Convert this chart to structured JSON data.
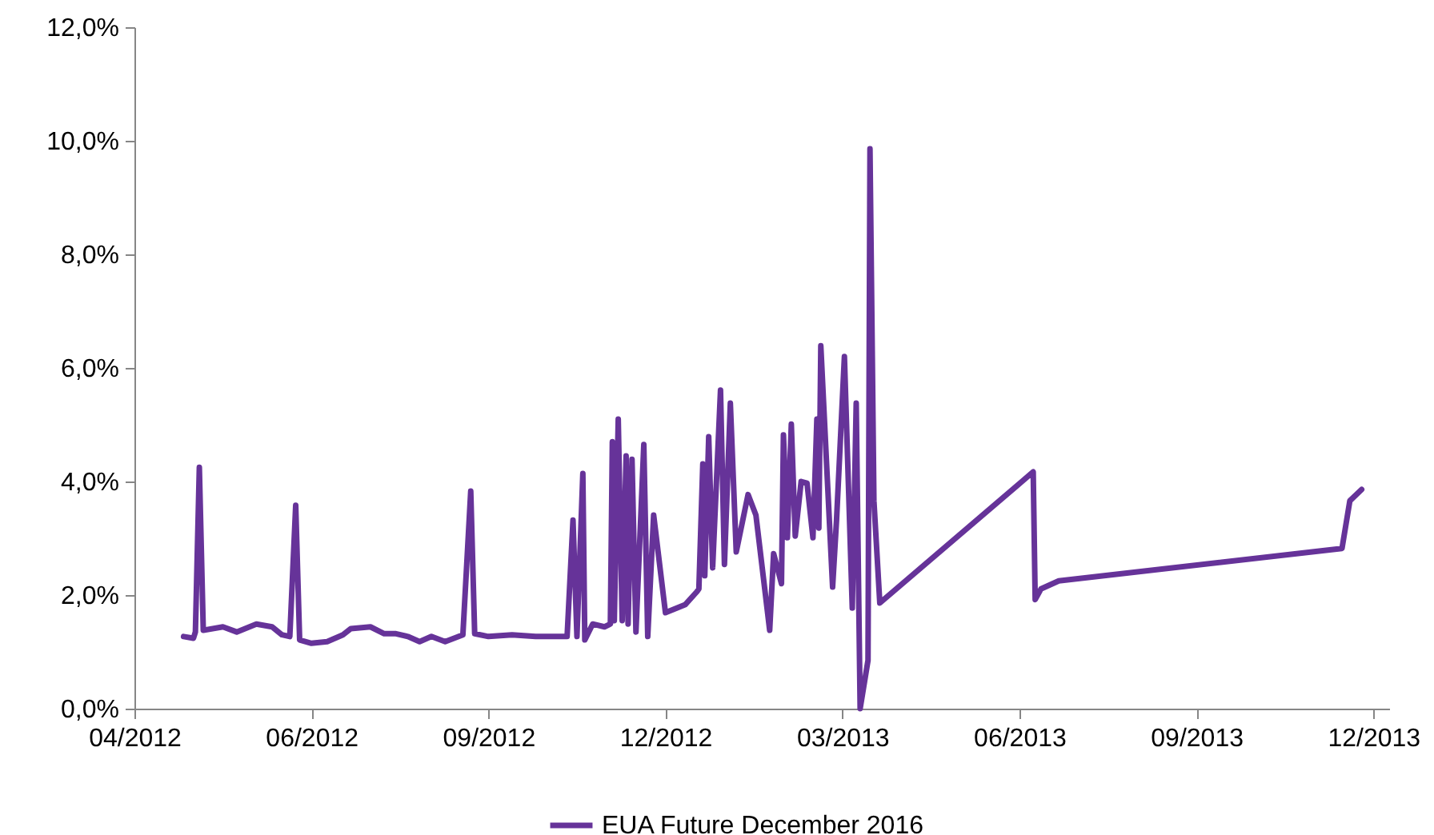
{
  "chart_data": {
    "type": "line",
    "legend": "bottom",
    "grid": false,
    "x": [
      "2012-04-26",
      "2012-05-01",
      "2012-05-02",
      "2012-05-04",
      "2012-05-06",
      "2012-05-16",
      "2012-05-23",
      "2012-06-02",
      "2012-06-10",
      "2012-06-15",
      "2012-06-19",
      "2012-06-22",
      "2012-06-24",
      "2012-06-30",
      "2012-07-08",
      "2012-07-16",
      "2012-07-20",
      "2012-07-30",
      "2012-08-06",
      "2012-08-12",
      "2012-08-18",
      "2012-08-24",
      "2012-08-30",
      "2012-09-06",
      "2012-09-15",
      "2012-09-19",
      "2012-09-21",
      "2012-09-28",
      "2012-10-10",
      "2012-10-22",
      "2012-10-30",
      "2012-11-07",
      "2012-11-10",
      "2012-11-12",
      "2012-11-15",
      "2012-11-16",
      "2012-11-20",
      "2012-11-26",
      "2012-11-29",
      "2012-11-30",
      "2012-12-01",
      "2012-12-03",
      "2012-12-05",
      "2012-12-07",
      "2012-12-08",
      "2012-12-10",
      "2012-12-12",
      "2012-12-16",
      "2012-12-18",
      "2012-12-21",
      "2012-12-27",
      "2013-01-06",
      "2013-01-12",
      "2013-01-13",
      "2013-01-15",
      "2013-01-16",
      "2013-01-18",
      "2013-01-20",
      "2013-01-24",
      "2013-01-26",
      "2013-01-29",
      "2013-02-01",
      "2013-02-07",
      "2013-02-11",
      "2013-02-18",
      "2013-02-20",
      "2013-02-24",
      "2013-02-25",
      "2013-02-27",
      "2013-03-01",
      "2013-03-03",
      "2013-03-06",
      "2013-03-09",
      "2013-03-12",
      "2013-03-14",
      "2013-03-15",
      "2013-03-16",
      "2013-03-22",
      "2013-03-24",
      "2013-03-28",
      "2013-04-01",
      "2013-04-03",
      "2013-04-05",
      "2013-04-09",
      "2013-04-10",
      "2013-04-12",
      "2013-04-15",
      "2013-07-02",
      "2013-07-03",
      "2013-07-06",
      "2013-07-15",
      "2013-12-06",
      "2013-12-10",
      "2013-12-16"
    ],
    "series": [
      {
        "name": "EUA Future December 2016",
        "color": "#663399",
        "values": [
          1.27,
          1.24,
          1.35,
          4.25,
          1.38,
          1.44,
          1.35,
          1.49,
          1.44,
          1.3,
          1.27,
          3.58,
          1.21,
          1.15,
          1.18,
          1.3,
          1.41,
          1.44,
          1.32,
          1.32,
          1.27,
          1.18,
          1.27,
          1.18,
          1.3,
          3.83,
          1.32,
          1.27,
          1.3,
          1.27,
          1.27,
          1.27,
          3.32,
          1.27,
          4.14,
          1.21,
          1.49,
          1.44,
          1.49,
          4.7,
          1.55,
          5.1,
          1.55,
          4.45,
          1.49,
          4.39,
          1.35,
          4.65,
          1.27,
          3.41,
          1.69,
          1.83,
          2.06,
          2.11,
          4.31,
          2.34,
          4.79,
          2.48,
          5.61,
          2.54,
          5.38,
          2.76,
          3.77,
          3.41,
          1.38,
          2.73,
          2.2,
          4.82,
          3.01,
          5.01,
          3.04,
          4.0,
          3.97,
          3.01,
          5.1,
          3.18,
          6.39,
          2.14,
          3.32,
          6.2,
          1.77,
          5.38,
          0.0,
          0.85,
          9.86,
          3.66,
          1.86,
          4.17,
          1.92,
          2.11,
          2.25,
          2.82,
          3.66,
          3.86
        ]
      }
    ],
    "xlim": [
      "2012-04-01",
      "2013-12-30"
    ],
    "xticks": [
      {
        "value": "2012-04-01",
        "label": "04/2012"
      },
      {
        "value": "2012-06-30",
        "label": "06/2012"
      },
      {
        "value": "2012-09-28",
        "label": "09/2012"
      },
      {
        "value": "2012-12-27",
        "label": "12/2012"
      },
      {
        "value": "2013-03-27",
        "label": "03/2013"
      },
      {
        "value": "2013-06-25",
        "label": "06/2013"
      },
      {
        "value": "2013-09-23",
        "label": "09/2013"
      },
      {
        "value": "2013-12-22",
        "label": "12/2013"
      }
    ],
    "ylim": [
      0,
      12
    ],
    "yticks": [
      {
        "value": 0,
        "label": "0,0%"
      },
      {
        "value": 2,
        "label": "2,0%"
      },
      {
        "value": 4,
        "label": "4,0%"
      },
      {
        "value": 6,
        "label": "6,0%"
      },
      {
        "value": 8,
        "label": "8,0%"
      },
      {
        "value": 10,
        "label": "10,0%"
      },
      {
        "value": 12,
        "label": "12,0%"
      }
    ]
  }
}
